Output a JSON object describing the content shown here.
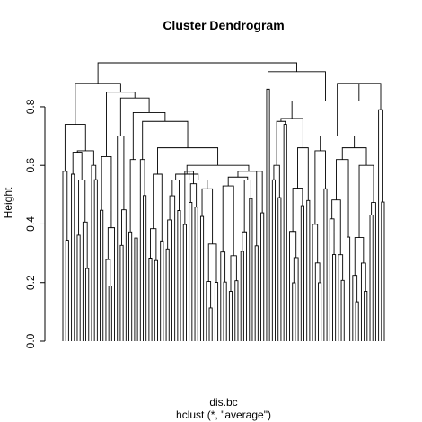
{
  "chart_data": {
    "type": "dendrogram",
    "title": "Cluster Dendrogram",
    "xlabel": "dis.bc",
    "sublabel": "hclust (*, \"average\")",
    "ylabel": "Height",
    "ylim": [
      0,
      0.95
    ],
    "yticks": [
      {
        "value": 0.0,
        "label": "0.0"
      },
      {
        "value": 0.2,
        "label": "0.2"
      },
      {
        "value": 0.4,
        "label": "0.4"
      },
      {
        "value": 0.6,
        "label": "0.6"
      },
      {
        "value": 0.8,
        "label": "0.8"
      }
    ],
    "leaf_count": 120,
    "merge_heights": {
      "root": 0.95,
      "left_main": 0.88,
      "right_main": 0.92,
      "left_outer_group": 0.74,
      "left_inner": 0.85,
      "left_inner_2": 0.83,
      "left_inner_3": 0.78,
      "left_inner_4": 0.75,
      "big_cluster": 0.66,
      "big_sub": 0.6,
      "right_a": 0.88,
      "right_b": 0.82,
      "right_c": 0.8,
      "right_left": 0.76
    }
  }
}
